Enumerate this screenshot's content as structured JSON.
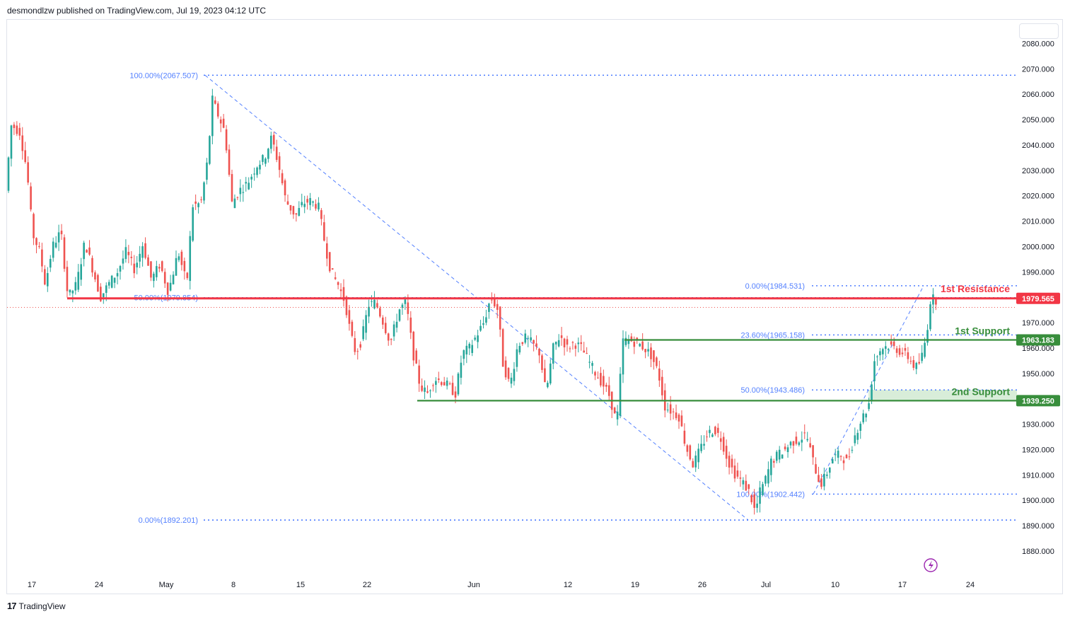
{
  "header": {
    "publisher_text": "desmondlzw published on TradingView.com, Jul 19, 2023 04:12 UTC"
  },
  "footer": {
    "brand": "TradingView",
    "logo_glyph": "17"
  },
  "colors": {
    "up": "#26a69a",
    "down": "#ef5350",
    "resistance": "#f23645",
    "support": "#388e3c",
    "fib": "#2962ff"
  },
  "chart_data": {
    "type": "candlestick",
    "y_ticks": [
      "2080.000",
      "2070.000",
      "2060.000",
      "2050.000",
      "2040.000",
      "2030.000",
      "2020.000",
      "2010.000",
      "2000.000",
      "1990.000",
      "1970.000",
      "1960.000",
      "1950.000",
      "1930.000",
      "1920.000",
      "1910.000",
      "1900.000",
      "1890.000",
      "1880.000"
    ],
    "y_tick_values": [
      2080,
      2070,
      2060,
      2050,
      2040,
      2030,
      2020,
      2010,
      2000,
      1990,
      1970,
      1960,
      1950,
      1930,
      1920,
      1910,
      1900,
      1890,
      1880
    ],
    "ylim": [
      1874,
      2086
    ],
    "x_ticks": [
      "17",
      "24",
      "May",
      "8",
      "15",
      "22",
      "Jun",
      "12",
      "19",
      "26",
      "Jul",
      "10",
      "17",
      "24"
    ],
    "levels": {
      "resistance_1": {
        "label": "1st Resistance",
        "value": 1979.565,
        "tag": "1979.565"
      },
      "support_1": {
        "label": "1st Support",
        "value": 1963.183,
        "tag": "1963.183"
      },
      "support_2": {
        "label": "2nd Support",
        "value": 1939.25,
        "tag": "1939.250"
      }
    },
    "fib_left": [
      {
        "label": "100.00%(2067.507)",
        "value": 2067.507
      },
      {
        "label": "50.00%(1979.854)",
        "value": 1979.854
      },
      {
        "label": "0.00%(1892.201)",
        "value": 1892.201
      }
    ],
    "fib_right": [
      {
        "label": "0.00%(1984.531)",
        "value": 1984.531
      },
      {
        "label": "23.60%(1965.158)",
        "value": 1965.158
      },
      {
        "label": "50.00%(1943.486)",
        "value": 1943.486
      },
      {
        "label": "100.00%(1902.442)",
        "value": 1902.442
      }
    ],
    "current_price": 1976.0,
    "price_path": [
      [
        0,
        2022
      ],
      [
        8,
        2048
      ],
      [
        20,
        2045
      ],
      [
        30,
        2030
      ],
      [
        38,
        2005
      ],
      [
        48,
        1998
      ],
      [
        56,
        1985
      ],
      [
        66,
        2000
      ],
      [
        78,
        2006
      ],
      [
        88,
        1980
      ],
      [
        100,
        1985
      ],
      [
        112,
        2002
      ],
      [
        124,
        1990
      ],
      [
        134,
        1980
      ],
      [
        145,
        1985
      ],
      [
        158,
        1990
      ],
      [
        170,
        1998
      ],
      [
        182,
        1991
      ],
      [
        194,
        2001
      ],
      [
        206,
        1987
      ],
      [
        218,
        1993
      ],
      [
        230,
        1982
      ],
      [
        244,
        1998
      ],
      [
        256,
        1985
      ],
      [
        264,
        2016
      ],
      [
        276,
        2017
      ],
      [
        286,
        2035
      ],
      [
        292,
        2058
      ],
      [
        300,
        2052
      ],
      [
        310,
        2045
      ],
      [
        320,
        2017
      ],
      [
        330,
        2022
      ],
      [
        342,
        2025
      ],
      [
        355,
        2032
      ],
      [
        366,
        2035
      ],
      [
        376,
        2043
      ],
      [
        386,
        2032
      ],
      [
        396,
        2018
      ],
      [
        410,
        2012
      ],
      [
        420,
        2017
      ],
      [
        430,
        2018
      ],
      [
        442,
        2016
      ],
      [
        452,
        2000
      ],
      [
        460,
        1990
      ],
      [
        470,
        1985
      ],
      [
        480,
        1978
      ],
      [
        488,
        1965
      ],
      [
        495,
        1958
      ],
      [
        503,
        1963
      ],
      [
        513,
        1977
      ],
      [
        523,
        1978
      ],
      [
        534,
        1970
      ],
      [
        544,
        1962
      ],
      [
        556,
        1975
      ],
      [
        566,
        1978
      ],
      [
        576,
        1958
      ],
      [
        586,
        1945
      ],
      [
        596,
        1942
      ],
      [
        606,
        1948
      ],
      [
        616,
        1947
      ],
      [
        626,
        1945
      ],
      [
        636,
        1942
      ],
      [
        646,
        1958
      ],
      [
        656,
        1960
      ],
      [
        666,
        1965
      ],
      [
        676,
        1970
      ],
      [
        686,
        1980
      ],
      [
        696,
        1975
      ],
      [
        703,
        1954
      ],
      [
        713,
        1945
      ],
      [
        724,
        1961
      ],
      [
        734,
        1964
      ],
      [
        744,
        1962
      ],
      [
        755,
        1958
      ],
      [
        764,
        1942
      ],
      [
        774,
        1960
      ],
      [
        784,
        1965
      ],
      [
        794,
        1960
      ],
      [
        804,
        1962
      ],
      [
        814,
        1960
      ],
      [
        824,
        1955
      ],
      [
        834,
        1950
      ],
      [
        844,
        1946
      ],
      [
        854,
        1941
      ],
      [
        864,
        1930
      ],
      [
        873,
        1963
      ],
      [
        883,
        1963
      ],
      [
        893,
        1962
      ],
      [
        903,
        1960
      ],
      [
        913,
        1957
      ],
      [
        923,
        1950
      ],
      [
        932,
        1937
      ],
      [
        942,
        1935
      ],
      [
        952,
        1933
      ],
      [
        962,
        1921
      ],
      [
        972,
        1914
      ],
      [
        982,
        1920
      ],
      [
        992,
        1926
      ],
      [
        1002,
        1928
      ],
      [
        1012,
        1924
      ],
      [
        1022,
        1915
      ],
      [
        1032,
        1910
      ],
      [
        1042,
        1907
      ],
      [
        1052,
        1903
      ],
      [
        1060,
        1895
      ],
      [
        1066,
        1903
      ],
      [
        1074,
        1908
      ],
      [
        1082,
        1915
      ],
      [
        1092,
        1918
      ],
      [
        1102,
        1920
      ],
      [
        1112,
        1923
      ],
      [
        1122,
        1924
      ],
      [
        1132,
        1926
      ],
      [
        1142,
        1915
      ],
      [
        1152,
        1906
      ],
      [
        1160,
        1910
      ],
      [
        1170,
        1917
      ],
      [
        1180,
        1918
      ],
      [
        1190,
        1915
      ],
      [
        1200,
        1925
      ],
      [
        1210,
        1932
      ],
      [
        1220,
        1937
      ],
      [
        1228,
        1955
      ],
      [
        1238,
        1960
      ],
      [
        1248,
        1961
      ],
      [
        1258,
        1960
      ],
      [
        1268,
        1958
      ],
      [
        1278,
        1956
      ],
      [
        1286,
        1952
      ],
      [
        1294,
        1955
      ],
      [
        1302,
        1965
      ],
      [
        1308,
        1980
      ],
      [
        1314,
        1979
      ]
    ]
  }
}
